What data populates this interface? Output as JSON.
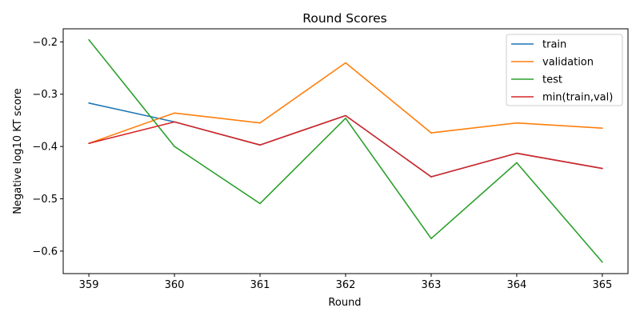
{
  "chart_data": {
    "type": "line",
    "title": "Round Scores",
    "xlabel": "Round",
    "ylabel": "Negative log10 KT score",
    "x": [
      359,
      360,
      361,
      362,
      363,
      364,
      365
    ],
    "xlim": [
      358.7,
      365.3
    ],
    "ylim": [
      -0.643,
      -0.175
    ],
    "yticks": [
      -0.2,
      -0.3,
      -0.4,
      -0.5,
      -0.6
    ],
    "ytick_labels": [
      "−0.2",
      "−0.3",
      "−0.4",
      "−0.5",
      "−0.6"
    ],
    "grid": false,
    "legend_position": "top-right",
    "series": [
      {
        "name": "train",
        "color": "#1f77b4",
        "values": [
          -0.317,
          -0.353,
          -0.397,
          -0.341,
          -0.458,
          -0.413,
          -0.442
        ]
      },
      {
        "name": "validation",
        "color": "#ff7f0e",
        "values": [
          -0.394,
          -0.336,
          -0.355,
          -0.24,
          -0.374,
          -0.355,
          -0.365
        ]
      },
      {
        "name": "test",
        "color": "#2ca02c",
        "values": [
          -0.196,
          -0.4,
          -0.509,
          -0.346,
          -0.576,
          -0.431,
          -0.621
        ]
      },
      {
        "name": "min(train,val)",
        "color": "#d62728",
        "values": [
          -0.394,
          -0.353,
          -0.397,
          -0.341,
          -0.458,
          -0.413,
          -0.442
        ]
      }
    ]
  }
}
